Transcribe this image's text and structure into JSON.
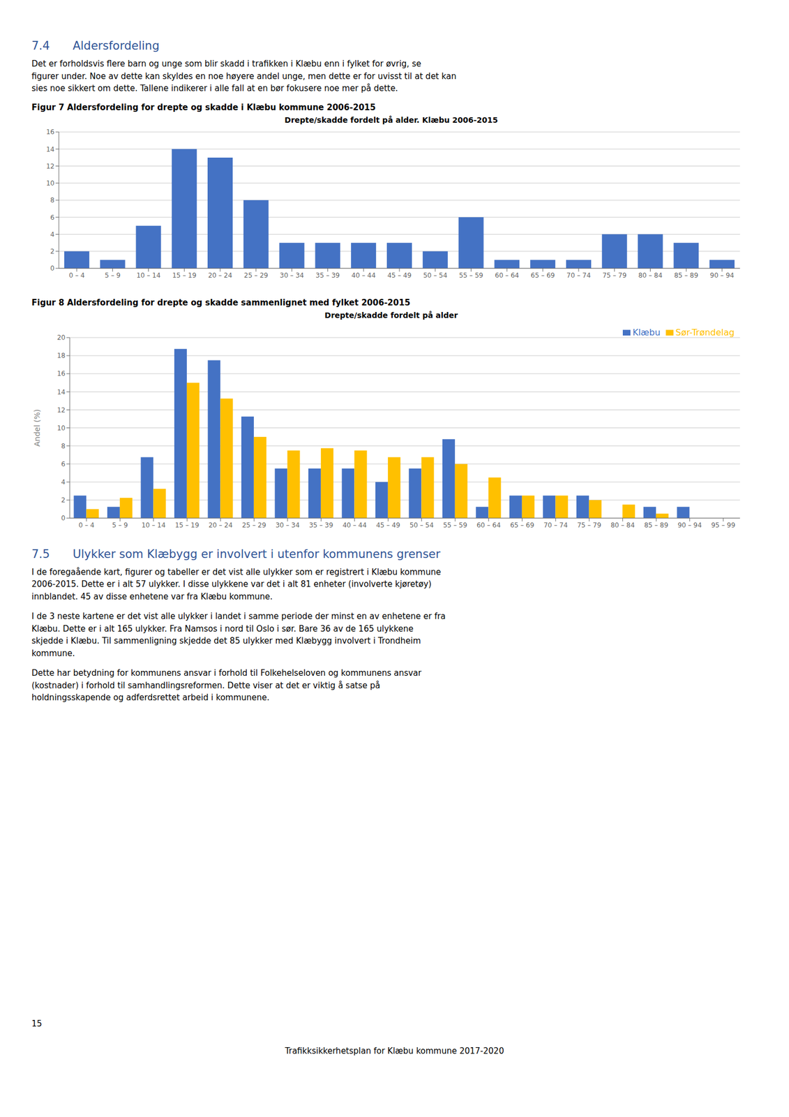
{
  "annotations": [
    "7.4  Aldersfordeling",
    "Det er forholdsvis flere barn og unge som blir skadd i trafikken i Klæbu enn i fylket for øvrig, se\nfigurer under. Noe av dette kan skyldes en noe høyere andel unge, men dette er for uvisst til at det kan\nsies noe sikkert om dette. Tallene indikerer i alle fall at en bør fokusere noe mer på dette.",
    "7.5  Ulykker som Klæbygg er involvert i utenfor kommunens grenser",
    "I de foregaående kart, figurer og tabeller er det vist alle ulykker som er registrert i Klæbu kommune\n2006-2015. Dette er i alt 57 ulykker. I disse ulykkene var det i alt 81 enheter (involverte kjøretøy)\ninnblandet. 45 av disse enhetene var fra Klæbu kommune.",
    "I de 3 neste kartene er det vist alle ulykker i landet i samme periode der minst en av enhetene er fra\nKlæbu. Dette er i alt 165 ulykker. Fra Namsos i nord til Oslo i sør. Bare 36 av de 165 ulykkene\nskjedde i Klæbu. Til sammenligning skjedde det 85 ulykker med Klæbygg involvert i Trondheim\nkommune.",
    "Dette har betydning for kommunens ansvar i forhold til Folkehelseloven og kommunens ansvar\n(kostnader) i forhold til samhandlingsreformen. Dette viser at det er viktig å satse på\nholdningsskapende og adferdsrettet arbeid i kommunene.",
    "15",
    "Trafikksikkerhetsplan for Klæbu kommune 2017-2020"
  ],
  "chart_data": [
    {
      "type": "bar",
      "subtitle": "Figur 7 Aldersfordeling for drepte og skadde i Klæbu kommune 2006-2015",
      "title": "Drepte/skadde fordelt på alder. Klæbu 2006-2015",
      "categories": [
        "0 – 4",
        "5 – 9",
        "10 – 14",
        "15 – 19",
        "20 – 24",
        "25 – 29",
        "30 – 34",
        "35 – 39",
        "40 – 44",
        "45 – 49",
        "50 – 54",
        "55 – 59",
        "60 – 64",
        "65 – 69",
        "70 – 74",
        "75 – 79",
        "80 – 84",
        "85 – 89",
        "90 – 94"
      ],
      "values": [
        2,
        1,
        5,
        14,
        13,
        8,
        3,
        3,
        3,
        3,
        2,
        6,
        1,
        1,
        1,
        4,
        4,
        3,
        1
      ],
      "color": "#4472C4",
      "ylim": [
        0,
        16
      ],
      "yticks": [
        0,
        2,
        4,
        6,
        8,
        10,
        12,
        14,
        16
      ],
      "grid": true
    },
    {
      "type": "bar",
      "subtitle": "Figur 8 Aldersfordeling for drepte og skadde sammenlignet med fylket 2006-2015",
      "title": "Drepte/skadde fordelt på alder",
      "y_label": "Andel (%)",
      "categories": [
        "0 – 4",
        "5 – 9",
        "10 – 14",
        "15 – 19",
        "20 – 24",
        "25 – 29",
        "30 – 34",
        "35 – 39",
        "40 – 44",
        "45 – 49",
        "50 – 54",
        "55 – 59",
        "60 – 64",
        "65 – 69",
        "70 – 74",
        "75 – 79",
        "80 – 84",
        "85 – 89",
        "90 – 94",
        "95 – 99"
      ],
      "series": [
        {
          "name": "Klæbu",
          "color": "#4472C4",
          "values": [
            2.5,
            1.25,
            6.75,
            18.75,
            17.5,
            11.25,
            5.5,
            5.5,
            5.5,
            4.0,
            5.5,
            8.75,
            1.25,
            2.5,
            2.5,
            2.5,
            0.0,
            1.25,
            1.25,
            0.0
          ]
        },
        {
          "name": "Sør-Trøndelag",
          "color": "#FFC000",
          "values": [
            1.0,
            2.25,
            3.25,
            15.0,
            13.25,
            9.0,
            7.5,
            7.75,
            7.5,
            6.75,
            6.75,
            6.0,
            4.5,
            2.5,
            2.5,
            2.0,
            1.5,
            0.5,
            0.0,
            0.0
          ]
        }
      ],
      "ylim": [
        0,
        20
      ],
      "yticks": [
        0,
        2,
        4,
        6,
        8,
        10,
        12,
        14,
        16,
        18,
        20
      ],
      "grid": true,
      "legend": "upper right"
    }
  ]
}
